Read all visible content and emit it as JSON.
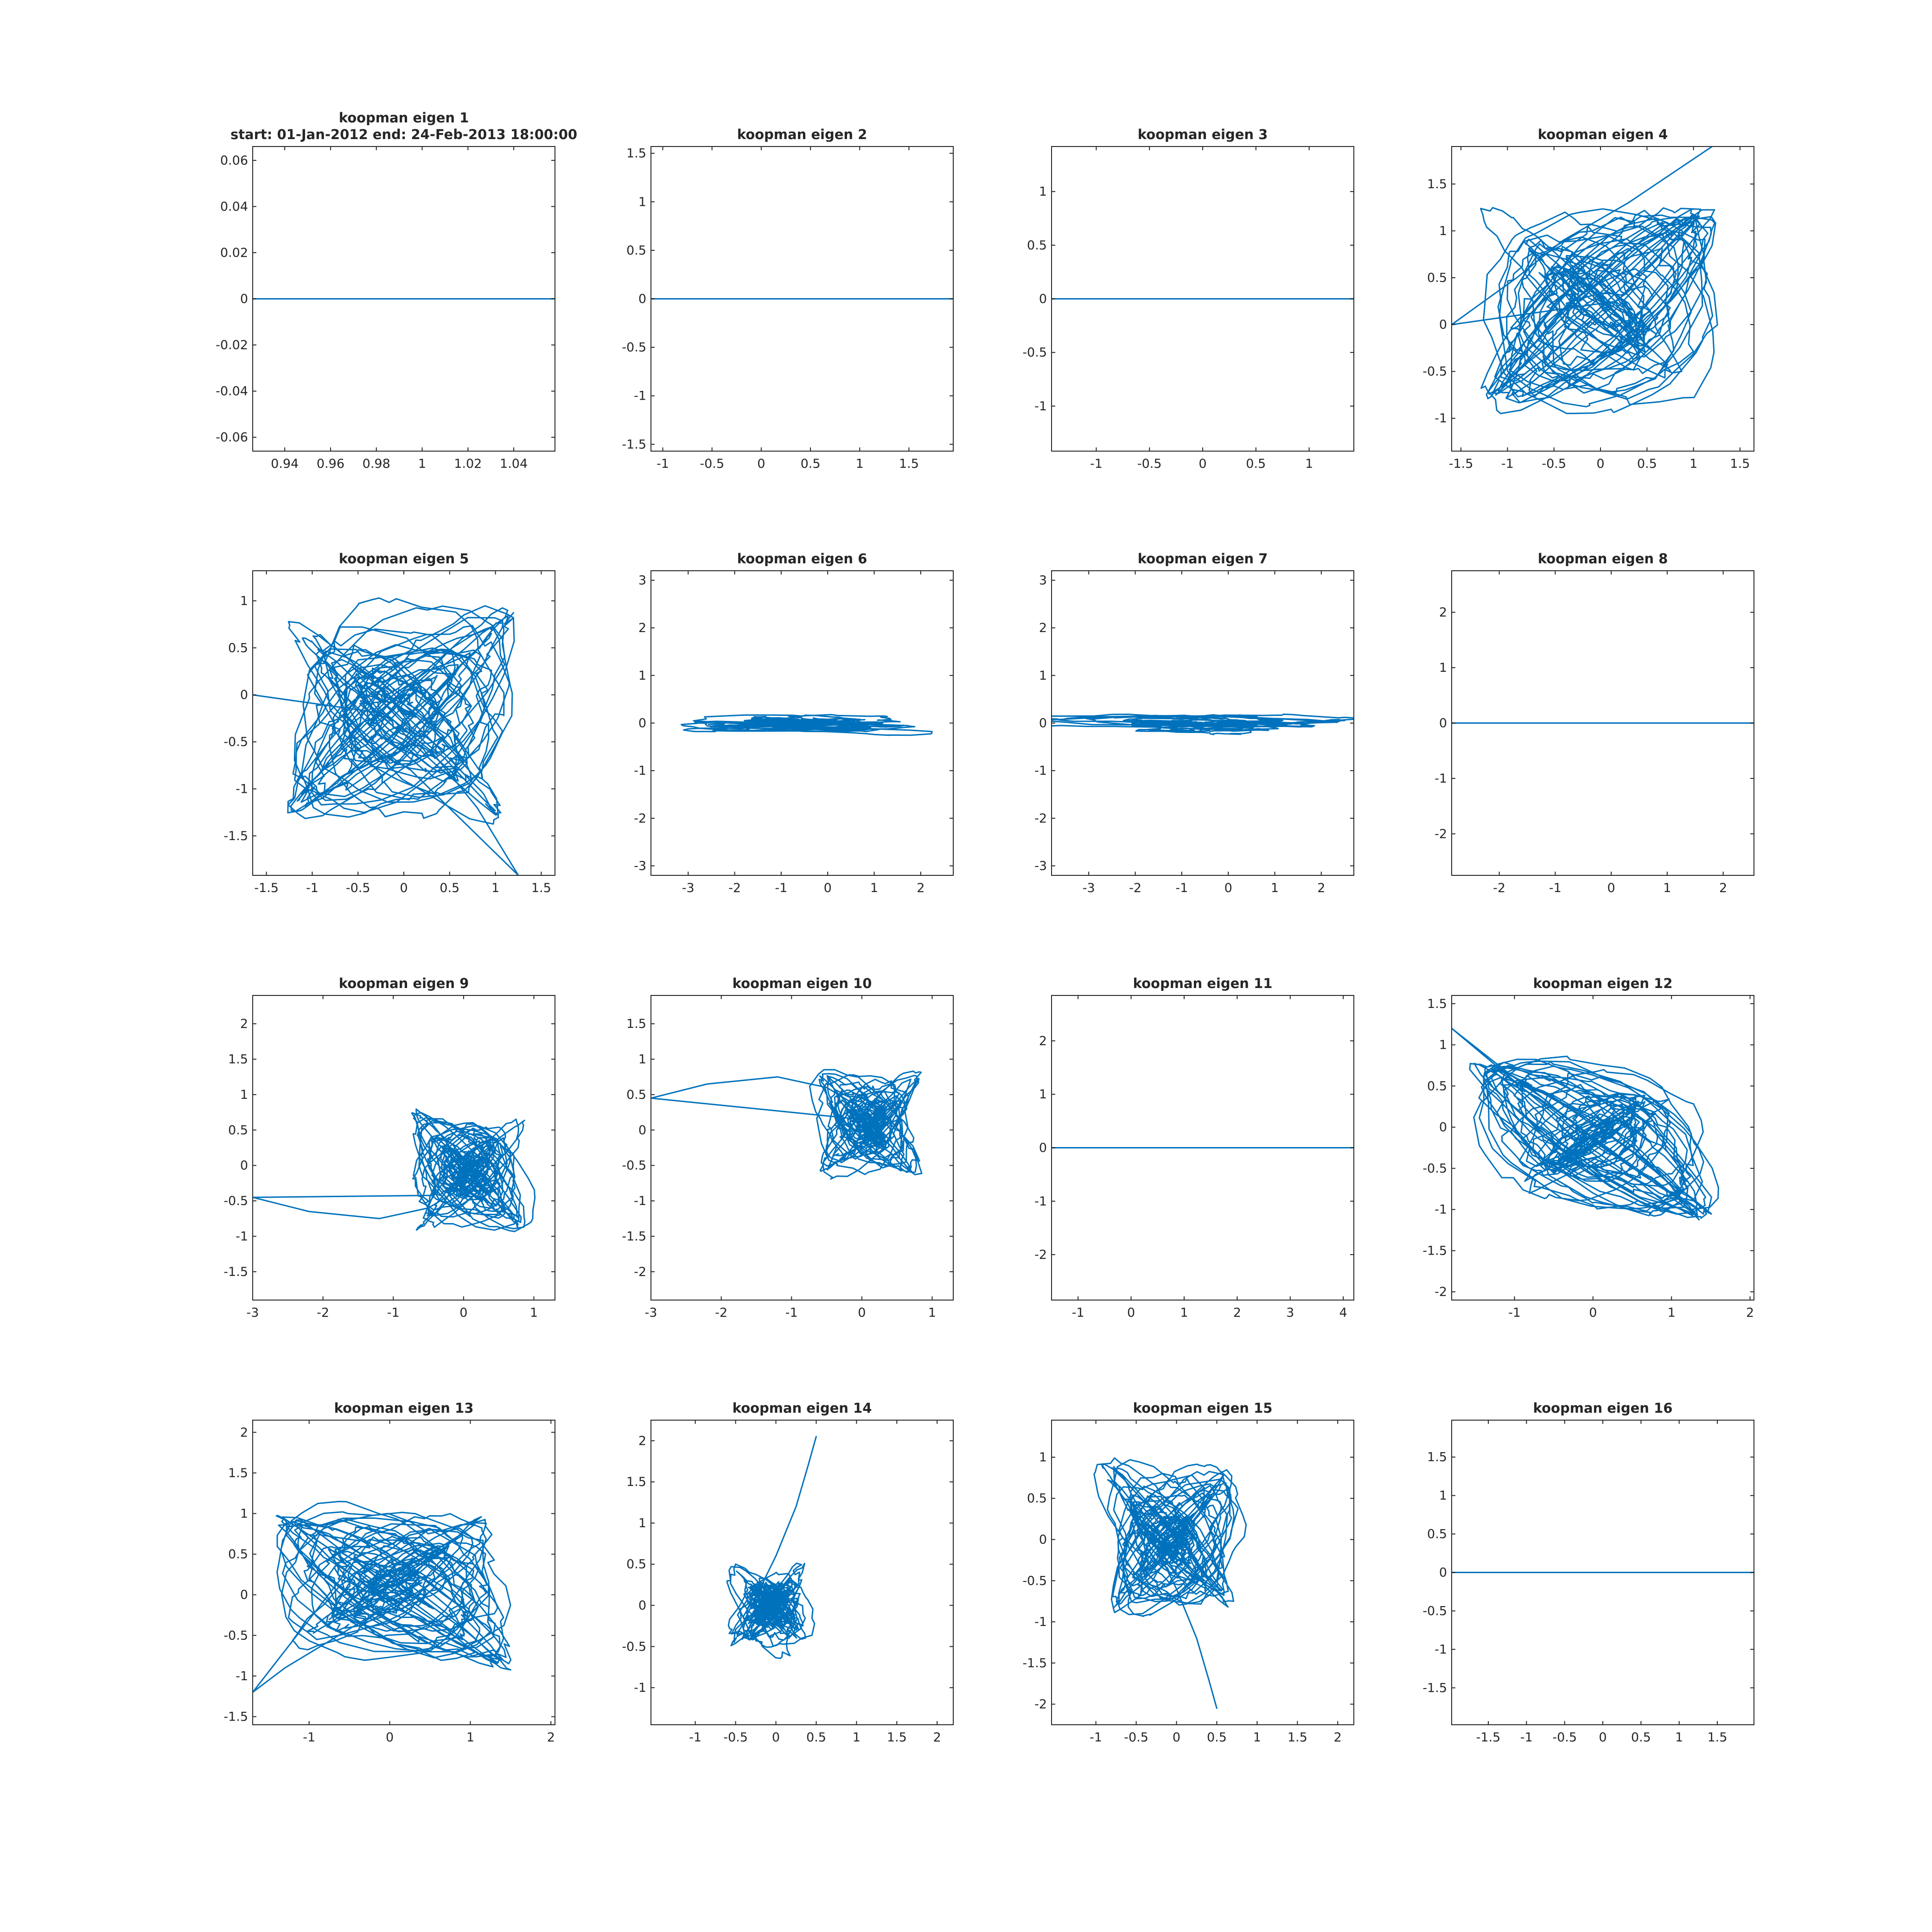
{
  "chart_data": [
    {
      "type": "line",
      "title": [
        "koopman eigen 1",
        "start: 01-Jan-2012 end: 24-Feb-2013 18:00:00"
      ],
      "xlim": [
        0.926,
        1.058
      ],
      "ylim": [
        -0.066,
        0.066
      ],
      "xticks": [
        0.94,
        0.96,
        0.98,
        1,
        1.02,
        1.04
      ],
      "xtick_labels": [
        "0.94",
        "0.96",
        "0.98",
        "1",
        "1.02",
        "1.04"
      ],
      "yticks": [
        -0.06,
        -0.04,
        -0.02,
        0,
        0.02,
        0.04,
        0.06
      ],
      "ytick_labels": [
        "-0.06",
        "-0.04",
        "-0.02",
        "0",
        "0.02",
        "0.04",
        "0.06"
      ],
      "color": "#0072bd",
      "trajectory": {
        "kind": "flat",
        "x": [
          0.926,
          1.058
        ],
        "y": [
          0,
          0
        ]
      }
    },
    {
      "type": "line",
      "title": [
        "koopman eigen 2"
      ],
      "xlim": [
        -1.12,
        1.95
      ],
      "ylim": [
        -1.57,
        1.57
      ],
      "xticks": [
        -1,
        -0.5,
        0,
        0.5,
        1,
        1.5
      ],
      "xtick_labels": [
        "-1",
        "-0.5",
        "0",
        "0.5",
        "1",
        "1.5"
      ],
      "yticks": [
        -1.5,
        -1,
        -0.5,
        0,
        0.5,
        1,
        1.5
      ],
      "ytick_labels": [
        "-1.5",
        "-1",
        "-0.5",
        "0",
        "0.5",
        "1",
        "1.5"
      ],
      "color": "#0072bd",
      "trajectory": {
        "kind": "flat",
        "x": [
          -1.12,
          1.95
        ],
        "y": [
          0,
          0
        ]
      }
    },
    {
      "type": "line",
      "title": [
        "koopman eigen 3"
      ],
      "xlim": [
        -1.42,
        1.42
      ],
      "ylim": [
        -1.42,
        1.42
      ],
      "xticks": [
        -1,
        -0.5,
        0,
        0.5,
        1
      ],
      "xtick_labels": [
        "-1",
        "-0.5",
        "0",
        "0.5",
        "1"
      ],
      "yticks": [
        -1,
        -0.5,
        0,
        0.5,
        1
      ],
      "ytick_labels": [
        "-1",
        "-0.5",
        "0",
        "0.5",
        "1"
      ],
      "color": "#0072bd",
      "trajectory": {
        "kind": "flat",
        "x": [
          -1.42,
          1.42
        ],
        "y": [
          0,
          0
        ]
      }
    },
    {
      "type": "line",
      "title": [
        "koopman eigen 4"
      ],
      "xlim": [
        -1.6,
        1.65
      ],
      "ylim": [
        -1.35,
        1.9
      ],
      "xticks": [
        -1.5,
        -1,
        -0.5,
        0,
        0.5,
        1,
        1.5
      ],
      "xtick_labels": [
        "-1.5",
        "-1",
        "-0.5",
        "0",
        "0.5",
        "1",
        "1.5"
      ],
      "yticks": [
        -1,
        -0.5,
        0,
        0.5,
        1,
        1.5
      ],
      "ytick_labels": [
        "-1",
        "-0.5",
        "0",
        "0.5",
        "1",
        "1.5"
      ],
      "color": "#0072bd",
      "trajectory": {
        "kind": "tangle",
        "seed": 4,
        "cx": 0.0,
        "cy": 0.2,
        "sx": 0.85,
        "sy": 0.75,
        "n": 1400,
        "extra_x": [
          -1.6,
          -0.9,
          -0.4,
          0.3,
          1.2
        ],
        "extra_y": [
          0.0,
          0.5,
          0.9,
          1.3,
          1.9
        ]
      }
    },
    {
      "type": "line",
      "title": [
        "koopman eigen 5"
      ],
      "xlim": [
        -1.65,
        1.65
      ],
      "ylim": [
        -1.92,
        1.32
      ],
      "xticks": [
        -1.5,
        -1,
        -0.5,
        0,
        0.5,
        1,
        1.5
      ],
      "xtick_labels": [
        "-1.5",
        "-1",
        "-0.5",
        "0",
        "0.5",
        "1",
        "1.5"
      ],
      "yticks": [
        -1.5,
        -1,
        -0.5,
        0,
        0.5,
        1
      ],
      "ytick_labels": [
        "-1.5",
        "-1",
        "-0.5",
        "0",
        "0.5",
        "1"
      ],
      "color": "#0072bd",
      "trajectory": {
        "kind": "tangle",
        "seed": 5,
        "cx": -0.1,
        "cy": -0.2,
        "sx": 0.85,
        "sy": 0.75,
        "n": 1400,
        "extra_x": [
          1.25,
          0.8,
          0.3,
          -0.2,
          -1.65
        ],
        "extra_y": [
          -1.92,
          -1.2,
          -0.6,
          -0.2,
          0.0
        ]
      }
    },
    {
      "type": "line",
      "title": [
        "koopman eigen 6"
      ],
      "xlim": [
        -3.8,
        2.7
      ],
      "ylim": [
        -3.2,
        3.2
      ],
      "xticks": [
        -3,
        -2,
        -1,
        0,
        1,
        2
      ],
      "xtick_labels": [
        "-3",
        "-2",
        "-1",
        "0",
        "1",
        "2"
      ],
      "yticks": [
        -3,
        -2,
        -1,
        0,
        1,
        2,
        3
      ],
      "ytick_labels": [
        "-3",
        "-2",
        "-1",
        "0",
        "1",
        "2",
        "3"
      ],
      "color": "#0072bd",
      "trajectory": {
        "kind": "band",
        "seed": 6,
        "cx": -0.5,
        "cy": 0.0,
        "sx": 3.0,
        "sy": 0.09,
        "n": 700
      }
    },
    {
      "type": "line",
      "title": [
        "koopman eigen 7"
      ],
      "xlim": [
        -3.8,
        2.7
      ],
      "ylim": [
        -3.2,
        3.2
      ],
      "xticks": [
        -3,
        -2,
        -1,
        0,
        1,
        2
      ],
      "xtick_labels": [
        "-3",
        "-2",
        "-1",
        "0",
        "1",
        "2"
      ],
      "yticks": [
        -3,
        -2,
        -1,
        0,
        1,
        2,
        3
      ],
      "ytick_labels": [
        "-3",
        "-2",
        "-1",
        "0",
        "1",
        "2",
        "3"
      ],
      "color": "#0072bd",
      "trajectory": {
        "kind": "band",
        "seed": 7,
        "cx": -0.5,
        "cy": 0.0,
        "sx": 3.0,
        "sy": 0.09,
        "n": 700
      }
    },
    {
      "type": "line",
      "title": [
        "koopman eigen 8"
      ],
      "xlim": [
        -2.85,
        2.55
      ],
      "ylim": [
        -2.75,
        2.75
      ],
      "xticks": [
        -2,
        -1,
        0,
        1,
        2
      ],
      "xtick_labels": [
        "-2",
        "-1",
        "0",
        "1",
        "2"
      ],
      "yticks": [
        -2,
        -1,
        0,
        1,
        2
      ],
      "ytick_labels": [
        "-2",
        "-1",
        "0",
        "1",
        "2"
      ],
      "color": "#0072bd",
      "trajectory": {
        "kind": "flat",
        "x": [
          -2.85,
          2.55
        ],
        "y": [
          0,
          0
        ]
      }
    },
    {
      "type": "line",
      "title": [
        "koopman eigen 9"
      ],
      "xlim": [
        -3.0,
        1.3
      ],
      "ylim": [
        -1.9,
        2.4
      ],
      "xticks": [
        -3,
        -2,
        -1,
        0,
        1
      ],
      "xtick_labels": [
        "-3",
        "-2",
        "-1",
        "0",
        "1"
      ],
      "yticks": [
        -1.5,
        -1,
        -0.5,
        0,
        0.5,
        1,
        1.5,
        2
      ],
      "ytick_labels": [
        "-1.5",
        "-1",
        "-0.5",
        "0",
        "0.5",
        "1",
        "1.5",
        "2"
      ],
      "color": "#0072bd",
      "trajectory": {
        "kind": "tangle",
        "seed": 9,
        "cx": 0.1,
        "cy": -0.1,
        "sx": 0.55,
        "sy": 0.55,
        "n": 1500,
        "extra_x": [
          -3.0,
          -2.2,
          -1.2,
          -0.5,
          0.0
        ],
        "extra_y": [
          -0.45,
          -0.65,
          -0.75,
          -0.6,
          -0.3
        ]
      }
    },
    {
      "type": "line",
      "title": [
        "koopman eigen 10"
      ],
      "xlim": [
        -3.0,
        1.3
      ],
      "ylim": [
        -2.4,
        1.9
      ],
      "xticks": [
        -3,
        -2,
        -1,
        0,
        1
      ],
      "xtick_labels": [
        "-3",
        "-2",
        "-1",
        "0",
        "1"
      ],
      "yticks": [
        -2,
        -1.5,
        -1,
        -0.5,
        0,
        0.5,
        1,
        1.5
      ],
      "ytick_labels": [
        "-2",
        "-1.5",
        "-1",
        "-0.5",
        "0",
        "0.5",
        "1",
        "1.5"
      ],
      "color": "#0072bd",
      "trajectory": {
        "kind": "tangle",
        "seed": 10,
        "cx": 0.1,
        "cy": 0.1,
        "sx": 0.55,
        "sy": 0.55,
        "n": 1500,
        "extra_x": [
          -3.0,
          -2.2,
          -1.2,
          -0.5,
          0.0
        ],
        "extra_y": [
          0.45,
          0.65,
          0.75,
          0.6,
          0.3
        ]
      }
    },
    {
      "type": "line",
      "title": [
        "koopman eigen 11"
      ],
      "xlim": [
        -1.5,
        4.2
      ],
      "ylim": [
        -2.85,
        2.85
      ],
      "xticks": [
        -1,
        0,
        1,
        2,
        3,
        4
      ],
      "xtick_labels": [
        "-1",
        "0",
        "1",
        "2",
        "3",
        "4"
      ],
      "yticks": [
        -2,
        -1,
        0,
        1,
        2
      ],
      "ytick_labels": [
        "-2",
        "-1",
        "0",
        "1",
        "2"
      ],
      "color": "#0072bd",
      "trajectory": {
        "kind": "flat",
        "x": [
          -1.5,
          4.2
        ],
        "y": [
          0,
          0
        ]
      }
    },
    {
      "type": "line",
      "title": [
        "koopman eigen 12"
      ],
      "xlim": [
        -1.8,
        2.05
      ],
      "ylim": [
        -2.1,
        1.6
      ],
      "xticks": [
        -1,
        0,
        1,
        2
      ],
      "xtick_labels": [
        "-1",
        "0",
        "1",
        "2"
      ],
      "yticks": [
        -2,
        -1.5,
        -1,
        -0.5,
        0,
        0.5,
        1,
        1.5
      ],
      "ytick_labels": [
        "-2",
        "-1.5",
        "-1",
        "-0.5",
        "0",
        "0.5",
        "1",
        "1.5"
      ],
      "color": "#0072bd",
      "trajectory": {
        "kind": "tangle",
        "seed": 12,
        "cx": 0.0,
        "cy": -0.2,
        "sx": 1.0,
        "sy": 0.65,
        "n": 1500,
        "extra_x": [
          -1.8,
          -1.4,
          -1.0,
          -0.4,
          0.2
        ],
        "extra_y": [
          1.2,
          0.9,
          0.6,
          0.3,
          0.0
        ]
      }
    },
    {
      "type": "line",
      "title": [
        "koopman eigen 13"
      ],
      "xlim": [
        -1.7,
        2.05
      ],
      "ylim": [
        -1.6,
        2.15
      ],
      "xticks": [
        -1,
        0,
        1,
        2
      ],
      "xtick_labels": [
        "-1",
        "0",
        "1",
        "2"
      ],
      "yticks": [
        -1.5,
        -1,
        -0.5,
        0,
        0.5,
        1,
        1.5,
        2
      ],
      "ytick_labels": [
        "-1.5",
        "-1",
        "-0.5",
        "0",
        "0.5",
        "1",
        "1.5",
        "2"
      ],
      "color": "#0072bd",
      "trajectory": {
        "kind": "tangle",
        "seed": 13,
        "cx": 0.0,
        "cy": 0.1,
        "sx": 1.0,
        "sy": 0.65,
        "n": 1500,
        "extra_x": [
          -1.7,
          -1.3,
          -0.8,
          -0.3,
          0.3
        ],
        "extra_y": [
          -1.2,
          -0.9,
          -0.6,
          -0.3,
          0.0
        ]
      }
    },
    {
      "type": "line",
      "title": [
        "koopman eigen 14"
      ],
      "xlim": [
        -1.55,
        2.2
      ],
      "ylim": [
        -1.45,
        2.25
      ],
      "xticks": [
        -1,
        -0.5,
        0,
        0.5,
        1,
        1.5,
        2
      ],
      "xtick_labels": [
        "-1",
        "-0.5",
        "0",
        "0.5",
        "1",
        "1.5",
        "2"
      ],
      "yticks": [
        -1,
        -0.5,
        0,
        0.5,
        1,
        1.5,
        2
      ],
      "ytick_labels": [
        "-1",
        "-0.5",
        "0",
        "0.5",
        "1",
        "1.5",
        "2"
      ],
      "color": "#0072bd",
      "trajectory": {
        "kind": "tangle",
        "seed": 14,
        "cx": -0.05,
        "cy": 0.0,
        "sx": 0.55,
        "sy": 0.6,
        "n": 1500,
        "extra_x": [
          -0.4,
          0.0,
          0.25,
          0.4,
          0.5
        ],
        "extra_y": [
          -0.2,
          0.6,
          1.2,
          1.7,
          2.05
        ]
      }
    },
    {
      "type": "line",
      "title": [
        "koopman eigen 15"
      ],
      "xlim": [
        -1.55,
        2.2
      ],
      "ylim": [
        -2.25,
        1.45
      ],
      "xticks": [
        -1,
        -0.5,
        0,
        0.5,
        1,
        1.5,
        2
      ],
      "xtick_labels": [
        "-1",
        "-0.5",
        "0",
        "0.5",
        "1",
        "1.5",
        "2"
      ],
      "yticks": [
        -2,
        -1.5,
        -1,
        -0.5,
        0,
        0.5,
        1
      ],
      "ytick_labels": [
        "-2",
        "-1.5",
        "-1",
        "-0.5",
        "0",
        "0.5",
        "1"
      ],
      "color": "#0072bd",
      "trajectory": {
        "kind": "tangle",
        "seed": 15,
        "cx": -0.05,
        "cy": 0.0,
        "sx": 0.55,
        "sy": 0.6,
        "n": 1500,
        "extra_x": [
          -0.4,
          0.0,
          0.25,
          0.4,
          0.5
        ],
        "extra_y": [
          0.2,
          -0.6,
          -1.2,
          -1.7,
          -2.05
        ]
      }
    },
    {
      "type": "line",
      "title": [
        "koopman eigen 16"
      ],
      "xlim": [
        -1.98,
        1.98
      ],
      "ylim": [
        -1.98,
        1.98
      ],
      "xticks": [
        -1.5,
        -1,
        -0.5,
        0,
        0.5,
        1,
        1.5
      ],
      "xtick_labels": [
        "-1.5",
        "-1",
        "-0.5",
        "0",
        "0.5",
        "1",
        "1.5"
      ],
      "yticks": [
        -1.5,
        -1,
        -0.5,
        0,
        0.5,
        1,
        1.5
      ],
      "ytick_labels": [
        "-1.5",
        "-1",
        "-0.5",
        "0",
        "0.5",
        "1",
        "1.5"
      ],
      "color": "#0072bd",
      "trajectory": {
        "kind": "flat",
        "x": [
          -1.98,
          1.98
        ],
        "y": [
          0,
          0
        ]
      }
    }
  ]
}
